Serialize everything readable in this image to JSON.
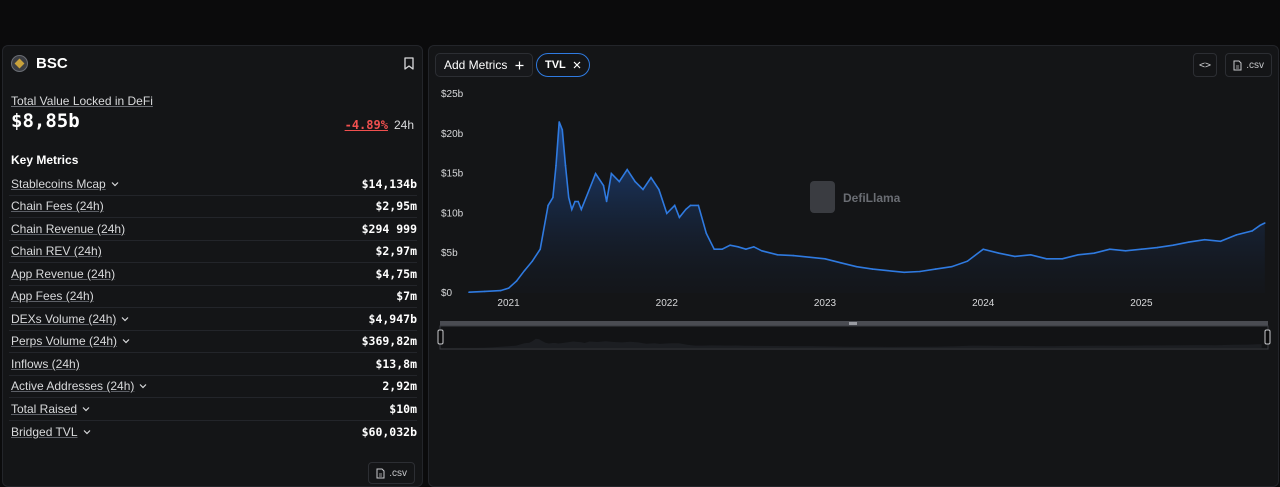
{
  "chain": {
    "name": "BSC"
  },
  "tvl": {
    "label": "Total Value Locked in DeFi",
    "value": "$8,85b",
    "change": "-4.89%",
    "period": "24h"
  },
  "key_metrics": {
    "title": "Key Metrics",
    "items": [
      {
        "label": "Stablecoins Mcap",
        "value": "$14,134b",
        "expandable": true
      },
      {
        "label": "Chain Fees (24h)",
        "value": "$2,95m",
        "expandable": false
      },
      {
        "label": "Chain Revenue (24h)",
        "value": "$294 999",
        "expandable": false
      },
      {
        "label": "Chain REV (24h)",
        "value": "$2,97m",
        "expandable": false
      },
      {
        "label": "App Revenue (24h)",
        "value": "$4,75m",
        "expandable": false
      },
      {
        "label": "App Fees (24h)",
        "value": "$7m",
        "expandable": false
      },
      {
        "label": "DEXs Volume (24h)",
        "value": "$4,947b",
        "expandable": true
      },
      {
        "label": "Perps Volume (24h)",
        "value": "$369,82m",
        "expandable": true
      },
      {
        "label": "Inflows (24h)",
        "value": "$13,8m",
        "expandable": false
      },
      {
        "label": "Active Addresses (24h)",
        "value": "2,92m",
        "expandable": true
      },
      {
        "label": "Total Raised",
        "value": "$10m",
        "expandable": true
      },
      {
        "label": "Bridged TVL",
        "value": "$60,032b",
        "expandable": true
      }
    ]
  },
  "buttons": {
    "csv": ".csv",
    "add_metrics": "Add Metrics",
    "embed": "<>"
  },
  "chip": {
    "label": "TVL"
  },
  "watermark": "DefiLlama",
  "colors": {
    "accent": "#2f7ae0",
    "negative": "#f0504f",
    "panel": "#141517"
  },
  "chart_data": {
    "type": "area",
    "series": [
      {
        "name": "TVL",
        "x": [
          2020.75,
          2020.85,
          2020.95,
          2021.0,
          2021.05,
          2021.1,
          2021.15,
          2021.2,
          2021.25,
          2021.28,
          2021.3,
          2021.32,
          2021.34,
          2021.36,
          2021.38,
          2021.4,
          2021.42,
          2021.44,
          2021.46,
          2021.5,
          2021.55,
          2021.6,
          2021.62,
          2021.65,
          2021.7,
          2021.75,
          2021.8,
          2021.85,
          2021.9,
          2021.95,
          2022.0,
          2022.05,
          2022.08,
          2022.12,
          2022.15,
          2022.2,
          2022.25,
          2022.3,
          2022.35,
          2022.4,
          2022.45,
          2022.5,
          2022.55,
          2022.6,
          2022.7,
          2022.8,
          2022.9,
          2023.0,
          2023.1,
          2023.2,
          2023.3,
          2023.4,
          2023.5,
          2023.6,
          2023.7,
          2023.8,
          2023.9,
          2024.0,
          2024.1,
          2024.2,
          2024.3,
          2024.4,
          2024.5,
          2024.6,
          2024.7,
          2024.8,
          2024.9,
          2025.0,
          2025.1,
          2025.2,
          2025.3,
          2025.4,
          2025.5,
          2025.6,
          2025.7,
          2025.75,
          2025.78
        ],
        "values": [
          0.1,
          0.2,
          0.3,
          0.6,
          1.5,
          2.8,
          4.0,
          5.5,
          11.0,
          12.0,
          16.0,
          21.5,
          20.5,
          16.0,
          12.0,
          10.5,
          11.5,
          11.5,
          10.5,
          12.5,
          15.0,
          13.5,
          11.5,
          15.0,
          14.0,
          15.5,
          14.0,
          13.0,
          14.5,
          13.0,
          10.0,
          11.0,
          9.5,
          10.5,
          11.0,
          11.0,
          7.5,
          5.5,
          5.5,
          6.0,
          5.8,
          5.5,
          5.8,
          5.3,
          4.8,
          4.7,
          4.5,
          4.3,
          3.8,
          3.3,
          3.0,
          2.8,
          2.6,
          2.7,
          3.0,
          3.3,
          4.0,
          5.5,
          5.0,
          4.6,
          4.8,
          4.3,
          4.3,
          4.8,
          5.0,
          5.5,
          5.3,
          5.5,
          5.7,
          6.0,
          6.4,
          6.7,
          6.5,
          7.3,
          7.8,
          8.5,
          8.8
        ]
      }
    ],
    "x_ticks": [
      "2021",
      "2022",
      "2023",
      "2024",
      "2025"
    ],
    "y_ticks": [
      "$0",
      "$5b",
      "$10b",
      "$15b",
      "$20b",
      "$25b"
    ],
    "ylim": [
      0,
      25
    ],
    "xlim": [
      2020.75,
      2025.8
    ],
    "grid": false,
    "legend": "none"
  }
}
